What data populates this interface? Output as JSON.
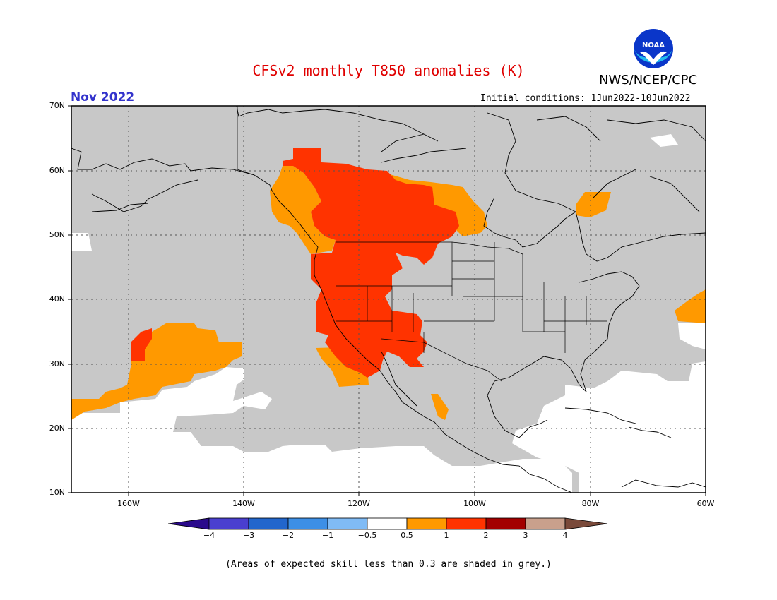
{
  "title": "CFSv2 monthly T850 anomalies (K)",
  "month": "Nov 2022",
  "org": "NWS/NCEP/CPC",
  "logo_text": "NOAA",
  "initial_conditions": "Initial conditions: 1Jun2022-10Jun2022",
  "footnote": "(Areas of expected skill less than 0.3 are shaded in grey.)",
  "lat_labels": [
    "70N",
    "60N",
    "50N",
    "40N",
    "30N",
    "20N",
    "10N"
  ],
  "lon_labels": [
    "160W",
    "140W",
    "120W",
    "100W",
    "80W",
    "60W"
  ],
  "colorbar": {
    "labels": [
      "−4",
      "−3",
      "−2",
      "−1",
      "−0.5",
      "0.5",
      "1",
      "2",
      "3",
      "4"
    ],
    "colors": [
      "#2a0a8c",
      "#4a3fcf",
      "#2266cc",
      "#3d8fe6",
      "#80bbf5",
      "#ffffff",
      "#ff9900",
      "#ff3300",
      "#a30000",
      "#c9a08c",
      "#7a4a3a"
    ]
  },
  "colors": {
    "skill_grey": "#c8c8c8",
    "anom_05_1": "#ff9900",
    "anom_1_2": "#ff3300",
    "title_red": "#e00000",
    "month_blue": "#3333cc"
  }
}
